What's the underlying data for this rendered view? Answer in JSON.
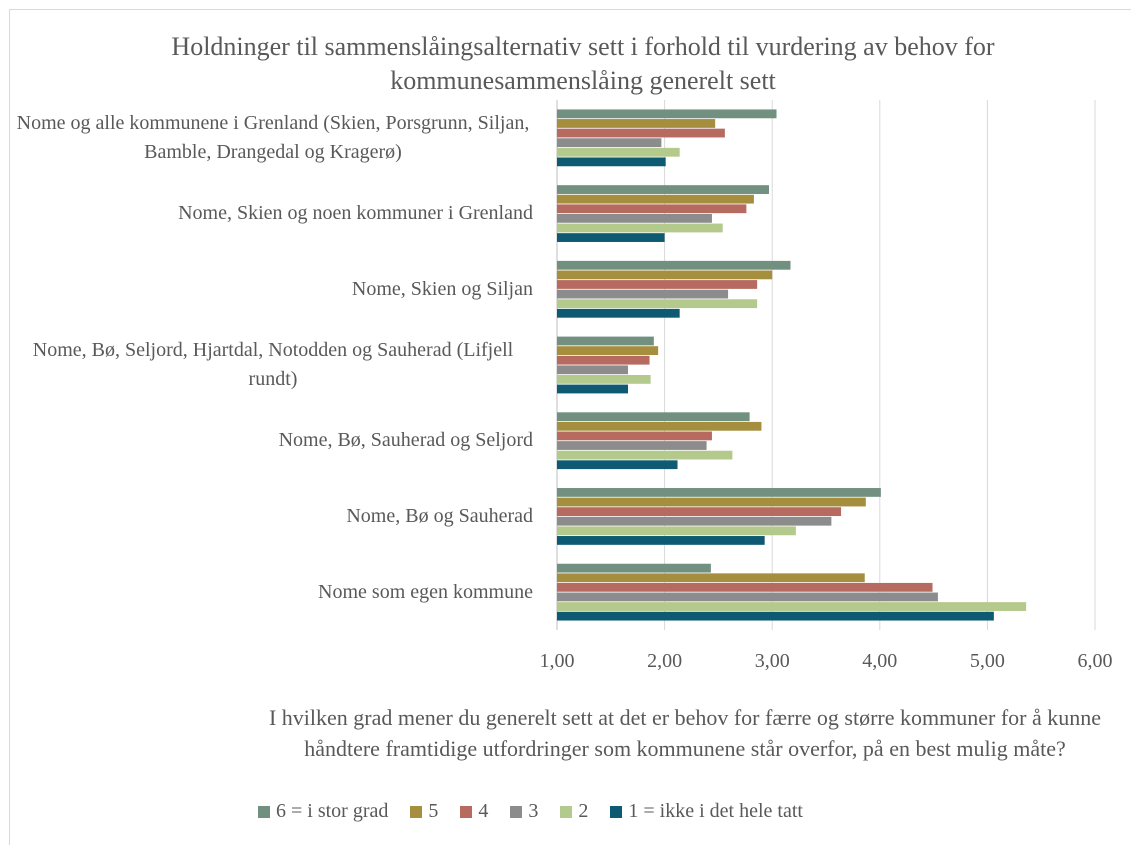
{
  "chart_data": {
    "type": "bar",
    "orientation": "horizontal",
    "title": "Holdninger til sammenslåingsalternativ sett i forhold til vurdering av behov for kommunesammenslåing generelt sett",
    "x_label": "I hvilken grad mener du generelt sett at det er behov for færre og større kommuner for å kunne håndtere framtidige utfordringer som kommunene står overfor, på en best mulig måte?",
    "categories": [
      "Nome og alle kommunene i Grenland (Skien, Porsgrunn, Siljan, Bamble, Drangedal og Kragerø)",
      "Nome, Skien og noen kommuner i Grenland",
      "Nome, Skien og Siljan",
      "Nome, Bø, Seljord, Hjartdal, Notodden og Sauherad (Lifjell rundt)",
      "Nome, Bø, Sauherad og Seljord",
      "Nome, Bø og Sauherad",
      "Nome som egen kommune"
    ],
    "series": [
      {
        "name": "6 = i stor grad",
        "color": "#71907f",
        "values": [
          3.04,
          2.97,
          3.17,
          1.9,
          2.79,
          4.01,
          2.43
        ]
      },
      {
        "name": "5",
        "color": "#a58f3f",
        "values": [
          2.47,
          2.83,
          3.0,
          1.94,
          2.9,
          3.87,
          3.86
        ]
      },
      {
        "name": "4",
        "color": "#b76b60",
        "values": [
          2.56,
          2.76,
          2.86,
          1.86,
          2.44,
          3.64,
          4.49
        ]
      },
      {
        "name": "3",
        "color": "#8c8c8c",
        "values": [
          1.97,
          2.44,
          2.59,
          1.66,
          2.39,
          3.55,
          4.54
        ]
      },
      {
        "name": "2",
        "color": "#b4c98c",
        "values": [
          2.14,
          2.54,
          2.86,
          1.87,
          2.63,
          3.22,
          5.36
        ]
      },
      {
        "name": "1 = ikke i det hele tatt",
        "color": "#0e5a72",
        "values": [
          2.01,
          2.0,
          2.14,
          1.66,
          2.12,
          2.93,
          5.06
        ]
      }
    ],
    "xlim": [
      1,
      6
    ],
    "xticks": [
      {
        "value": 1,
        "label": "1,00"
      },
      {
        "value": 2,
        "label": "2,00"
      },
      {
        "value": 3,
        "label": "3,00"
      },
      {
        "value": 4,
        "label": "4,00"
      },
      {
        "value": 5,
        "label": "5,00"
      },
      {
        "value": 6,
        "label": "6,00"
      }
    ],
    "grid": true,
    "legend": "bottom"
  }
}
